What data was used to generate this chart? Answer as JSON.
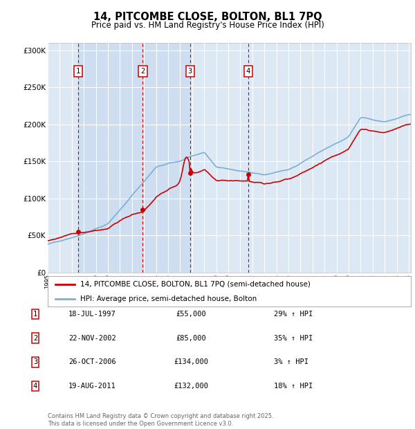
{
  "title": "14, PITCOMBE CLOSE, BOLTON, BL1 7PQ",
  "subtitle": "Price paid vs. HM Land Registry's House Price Index (HPI)",
  "ylim": [
    0,
    310000
  ],
  "yticks": [
    0,
    50000,
    100000,
    150000,
    200000,
    250000,
    300000
  ],
  "ytick_labels": [
    "£0",
    "£50K",
    "£100K",
    "£150K",
    "£200K",
    "£250K",
    "£300K"
  ],
  "background_color": "#ffffff",
  "plot_bg_color": "#dce9f5",
  "plot_shade_color": "#c5d8ee",
  "grid_color": "#ffffff",
  "sale_color": "#cc0000",
  "hpi_color": "#7aafd4",
  "sales": [
    {
      "date_num": 1997.54,
      "price": 55000,
      "label": "1"
    },
    {
      "date_num": 2002.9,
      "price": 85000,
      "label": "2"
    },
    {
      "date_num": 2006.82,
      "price": 134000,
      "label": "3"
    },
    {
      "date_num": 2011.64,
      "price": 132000,
      "label": "4"
    }
  ],
  "legend_entries": [
    "14, PITCOMBE CLOSE, BOLTON, BL1 7PQ (semi-detached house)",
    "HPI: Average price, semi-detached house, Bolton"
  ],
  "table_rows": [
    [
      "1",
      "18-JUL-1997",
      "£55,000",
      "29% ↑ HPI"
    ],
    [
      "2",
      "22-NOV-2002",
      "£85,000",
      "35% ↑ HPI"
    ],
    [
      "3",
      "26-OCT-2006",
      "£134,000",
      "3% ↑ HPI"
    ],
    [
      "4",
      "19-AUG-2011",
      "£132,000",
      "18% ↑ HPI"
    ]
  ],
  "footer": "Contains HM Land Registry data © Crown copyright and database right 2025.\nThis data is licensed under the Open Government Licence v3.0."
}
